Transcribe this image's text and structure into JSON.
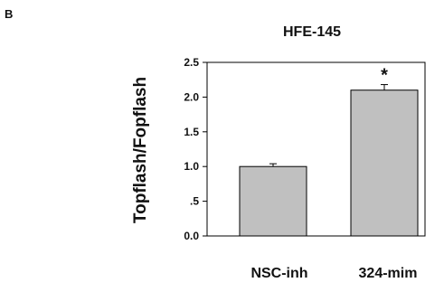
{
  "panel_label": "B",
  "chart_data": {
    "type": "bar",
    "title": "HFE-145",
    "xlabel": "",
    "ylabel": "Topflash/Fopflash",
    "categories": [
      "NSC-inh",
      "324-mim"
    ],
    "values": [
      1.0,
      2.1
    ],
    "errors": [
      0.04,
      0.08
    ],
    "annotations": [
      "",
      "*"
    ],
    "ylim": [
      0.0,
      2.5
    ],
    "yticks": [
      0.0,
      0.5,
      1.0,
      1.5,
      2.0,
      2.5
    ],
    "ytick_labels": [
      "0.0",
      ".5",
      "1.0",
      "1.5",
      "2.0",
      "2.5"
    ],
    "bar_color": "#c0c0c0",
    "grid": false
  }
}
